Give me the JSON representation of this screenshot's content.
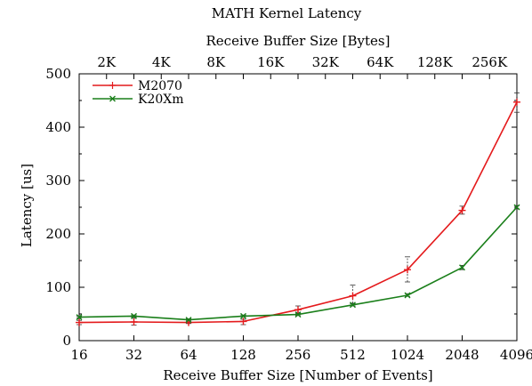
{
  "chart_data": {
    "type": "line",
    "title": "MATH Kernel Latency",
    "xlabel": "Receive Buffer Size [Number of Events]",
    "x2label": "Receive Buffer Size [Bytes]",
    "ylabel": "Latency [us]",
    "categories": [
      "16",
      "32",
      "64",
      "128",
      "256",
      "512",
      "1024",
      "2048",
      "4096"
    ],
    "top_ticks": [
      "2K",
      "4K",
      "8K",
      "16K",
      "32K",
      "64K",
      "128K",
      "256K"
    ],
    "y_ticks": [
      0,
      100,
      200,
      300,
      400,
      500
    ],
    "ylim": [
      0,
      500
    ],
    "x_scale": "log2",
    "grid": false,
    "legend_position": "top-left",
    "series": [
      {
        "name": "M2070",
        "color": "#e41a1c",
        "marker": "plus",
        "values": [
          34,
          35,
          34,
          36,
          58,
          84,
          133,
          244,
          447
        ],
        "err_low": [
          30,
          29,
          32,
          30,
          53,
          70,
          110,
          237,
          428
        ],
        "err_high": [
          38,
          42,
          37,
          40,
          65,
          104,
          157,
          252,
          464
        ]
      },
      {
        "name": "K20Xm",
        "color": "#1a7f1a",
        "marker": "cross",
        "values": [
          44,
          46,
          39,
          46,
          49,
          67,
          85,
          137,
          250
        ],
        "err_low": [
          43,
          44,
          37,
          45,
          47,
          65,
          83,
          133,
          247
        ],
        "err_high": [
          46,
          48,
          41,
          48,
          51,
          69,
          88,
          141,
          253
        ]
      }
    ]
  }
}
